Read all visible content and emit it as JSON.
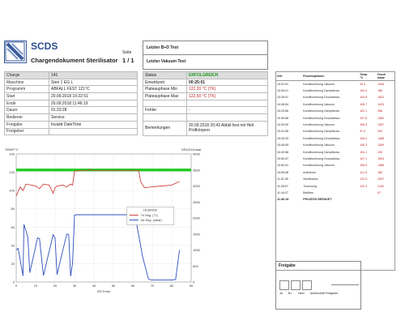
{
  "header": {
    "logo_icon": "scds-logo-icon",
    "brand": "SCDS",
    "doc_title": "Chargendokument Sterilisator",
    "seite_label": "Seite",
    "seite_value": "1 / 1"
  },
  "tests": {
    "bd_test": "Letzter B+D Test",
    "vakuum_test": "Letzter Vakuum Test"
  },
  "info": {
    "rows": [
      {
        "k": "Charge",
        "v": "141"
      },
      {
        "k": "Maschine",
        "v": "Steri 1 EG L"
      },
      {
        "k": "Programm",
        "v": "ABFALL FEST 121°C"
      },
      {
        "k": "Start",
        "v": "20.09.2018 10:22:51"
      },
      {
        "k": "Ende",
        "v": "20.09.2018 11:46:19"
      },
      {
        "k": "Dauer",
        "v": "01:23:28"
      },
      {
        "k": "Bediener",
        "v": "Service"
      },
      {
        "k": "Freigabe",
        "v": "Invalid DateTime"
      },
      {
        "k": "Freigeber",
        "v": ""
      }
    ]
  },
  "status": {
    "rows": [
      {
        "k": "Status",
        "v": "ERFOLGREICH"
      },
      {
        "k": "Einwirkzeit",
        "v": "00:25:01"
      },
      {
        "k": "Plateauphase Min",
        "v": "122,20 °C (TK)"
      },
      {
        "k": "Plateauphase Max",
        "v": "122,50 °C (TK)"
      },
      {
        "k": "",
        "v": ""
      },
      {
        "k": "Fehler",
        "v": "-"
      },
      {
        "k": "",
        "v": ""
      },
      {
        "k": "Bemerkungen",
        "v": "20.09.2018 20:43 Abfall fest mit Heli Prüfkörpern"
      }
    ]
  },
  "log": {
    "headers": {
      "zeit": "Zeit",
      "phase": "Prozessphasen",
      "temp": "Temp",
      "temp_unit": "°C",
      "druck": "Druck",
      "druck_unit": "mbar"
    },
    "rows": [
      {
        "zeit": "10:22:51",
        "phase": "Konditionierung Vakuum",
        "temp": "94.4",
        "druck": "1046"
      },
      {
        "zeit": "10:26:21",
        "phase": "Konditionierung Dampfstoss",
        "temp": "100.4",
        "druck": "188"
      },
      {
        "zeit": "10:26:41",
        "phase": "Konditionierung Druckabbau",
        "temp": "104.8",
        "druck": "1822"
      },
      {
        "zeit": "10:28:54",
        "phase": "Konditionierung Vakuum",
        "temp": "105.7",
        "druck": "1423"
      },
      {
        "zeit": "10:29:56",
        "phase": "Konditionierung Dampfstoss",
        "temp": "102.1",
        "druck": "286"
      },
      {
        "zeit": "10:30:58",
        "phase": "Konditionierung Druckabbau",
        "temp": "107.5",
        "druck": "1382"
      },
      {
        "zeit": "10:33:30",
        "phase": "Konditionierung Vakuum",
        "temp": "106.3",
        "druck": "1357"
      },
      {
        "zeit": "10:41:55",
        "phase": "Konditionierung Dampfstoss",
        "temp": "97.0",
        "druck": "202"
      },
      {
        "zeit": "10:43:33",
        "phase": "Konditionierung Druckabbau",
        "temp": "105.4",
        "druck": "1486"
      },
      {
        "zeit": "10:45:45",
        "phase": "Konditionierung Vakuum",
        "temp": "106.3",
        "druck": "1369"
      },
      {
        "zeit": "10:49:58",
        "phase": "Konditionierung Dampfstoss",
        "temp": "104.1",
        "druck": "226"
      },
      {
        "zeit": "10:50:37",
        "phase": "Konditionierung Druckabbau",
        "temp": "107.1",
        "druck": "1504"
      },
      {
        "zeit": "10:52:51",
        "phase": "Konditionierung Vakuum",
        "temp": "106.5",
        "druck": "1486"
      },
      {
        "zeit": "10:55:48",
        "phase": "Aufheizen",
        "temp": "121.5",
        "druck": "180"
      },
      {
        "zeit": "11:21:49",
        "phase": "Sterilisation",
        "temp": "122.5",
        "druck": "2097"
      },
      {
        "zeit": "11:28:07",
        "phase": "Trocknung",
        "temp": "120.3",
        "druck": "2100"
      },
      {
        "zeit": "11:44:27",
        "phase": "Belüften",
        "temp": "",
        "druck": "67"
      },
      {
        "zeit": "11:46:19",
        "phase": "PROZESS BEENDET",
        "temp": "",
        "druck": ""
      }
    ]
  },
  "freigabe": {
    "title": "Freigabe",
    "labels": [
      "Ja",
      "B.I.",
      "Nein",
      "Unterschrift Freigeber"
    ]
  },
  "chart_data": {
    "type": "line",
    "title": "",
    "xlabel": "ZEIT/min",
    "ylabel_left": "TEMP/°C",
    "ylabel_right": "DRUCK/mbar",
    "xlim": [
      0,
      90
    ],
    "ylim_left": [
      0,
      140
    ],
    "ylim_right": [
      0,
      4000
    ],
    "xticks": [
      "0",
      "10",
      "20",
      "30",
      "40",
      "50",
      "60",
      "70",
      "80",
      "90"
    ],
    "yticks_left": [
      "0",
      "20",
      "40",
      "60",
      "80",
      "100",
      "120",
      "140"
    ],
    "yticks_right": [
      "0",
      "500",
      "1000",
      "1500",
      "2000",
      "2500",
      "3000",
      "3500",
      "4000"
    ],
    "legend_title": "LEGENDE",
    "legend_position": "right",
    "band": {
      "ymin": 121,
      "ymax": 124,
      "color": "#22cc22"
    },
    "series": [
      {
        "name": "Tk Reg. (°C)",
        "axis": "left",
        "color": "#d04040",
        "x": [
          0,
          2,
          3.5,
          5,
          8,
          10,
          12,
          14,
          17,
          19,
          20,
          21,
          24,
          26,
          28,
          29,
          30,
          33,
          35,
          37,
          37.5,
          40,
          50,
          60,
          63,
          64,
          66,
          70,
          75,
          80,
          84
        ],
        "y": [
          94,
          104,
          100,
          107,
          106,
          105,
          102,
          107,
          106,
          97,
          103,
          105,
          106,
          104,
          107,
          106,
          121,
          122,
          122,
          122,
          123,
          122,
          122,
          122,
          122,
          110,
          103,
          104,
          105,
          106,
          110
        ]
      },
      {
        "name": "Dk Reg. (mbar)",
        "axis": "right",
        "color": "#3050c0",
        "x": [
          0,
          1,
          3.5,
          4,
          6,
          7,
          11,
          12,
          14,
          19,
          20,
          21,
          26,
          27,
          28,
          29,
          30,
          31,
          45,
          60,
          62,
          65,
          68,
          69,
          70,
          80,
          82,
          84
        ],
        "y": [
          1000,
          1050,
          190,
          1800,
          1400,
          290,
          1380,
          1350,
          200,
          1480,
          1370,
          230,
          1500,
          1480,
          180,
          600,
          2090,
          2100,
          2100,
          2100,
          1800,
          800,
          100,
          70,
          60,
          60,
          80,
          1000
        ]
      }
    ]
  }
}
